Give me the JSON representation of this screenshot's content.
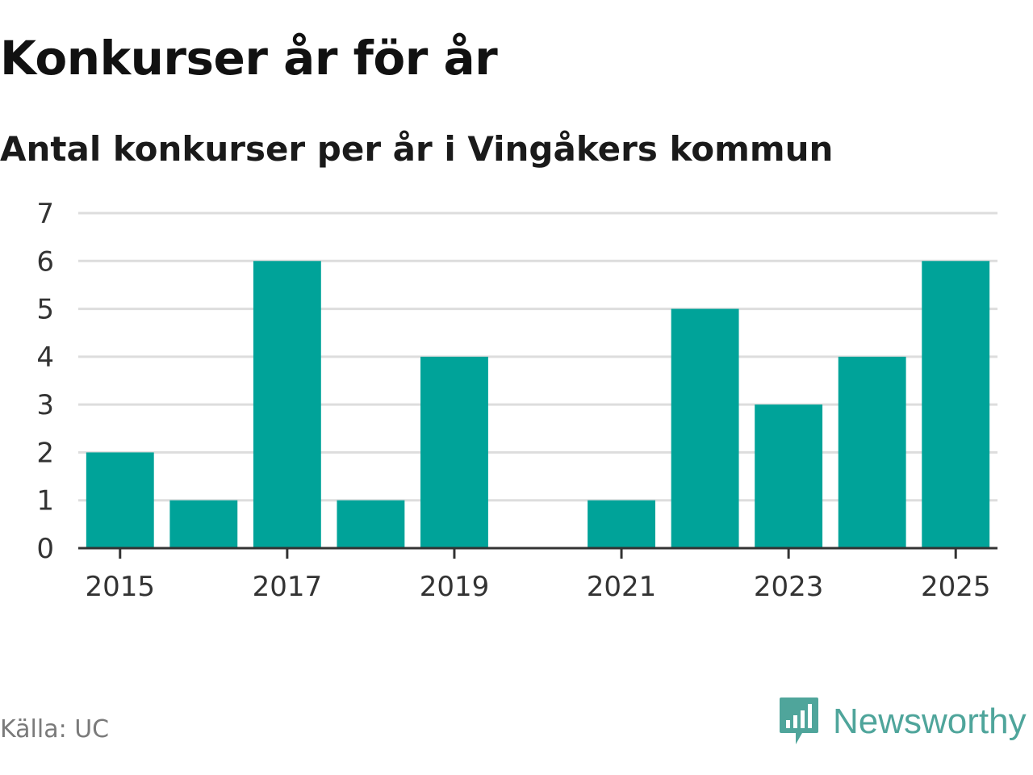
{
  "title": "Konkurser år för år",
  "subtitle": "Antal konkurser per år i Vingåkers kommun",
  "source": "Källa: UC",
  "brand": {
    "name": "Newsworthy",
    "icon": "newsworthy-logo-icon"
  },
  "colors": {
    "bar": "#00a399",
    "grid": "#dddddd",
    "axis": "#333333",
    "brand": "#4fa59b"
  },
  "chart_data": {
    "type": "bar",
    "categories": [
      "2015",
      "2016",
      "2017",
      "2018",
      "2019",
      "2020",
      "2021",
      "2022",
      "2023",
      "2024",
      "2025"
    ],
    "values": [
      2,
      1,
      6,
      1,
      4,
      0,
      1,
      5,
      3,
      4,
      6
    ],
    "x_tick_labels": [
      "2015",
      "2017",
      "2019",
      "2021",
      "2023",
      "2025"
    ],
    "y_ticks": [
      0,
      1,
      2,
      3,
      4,
      5,
      6,
      7
    ],
    "ylim": [
      0,
      7
    ],
    "xlabel": "",
    "ylabel": "",
    "grid": true,
    "legend": "none"
  }
}
